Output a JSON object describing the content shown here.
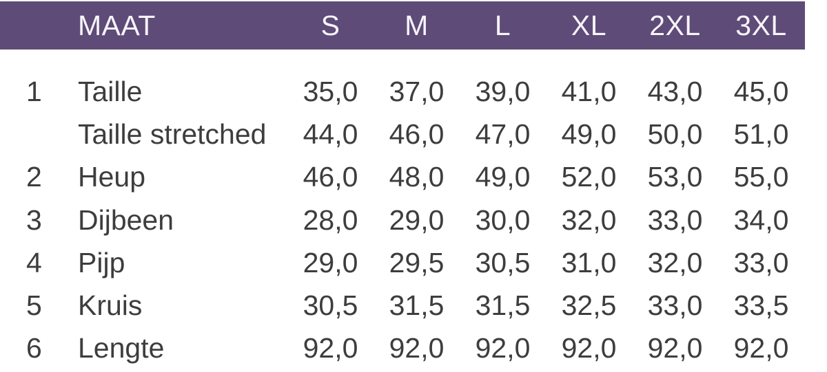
{
  "table": {
    "header": {
      "label": "MAAT",
      "sizes": [
        "S",
        "M",
        "L",
        "XL",
        "2XL",
        "3XL"
      ]
    },
    "rows": [
      {
        "num": "1",
        "label": "Taille",
        "values": [
          "35,0",
          "37,0",
          "39,0",
          "41,0",
          "43,0",
          "45,0"
        ]
      },
      {
        "num": "",
        "label": "Taille stretched",
        "values": [
          "44,0",
          "46,0",
          "47,0",
          "49,0",
          "50,0",
          "51,0"
        ]
      },
      {
        "num": "2",
        "label": "Heup",
        "values": [
          "46,0",
          "48,0",
          "49,0",
          "52,0",
          "53,0",
          "55,0"
        ]
      },
      {
        "num": "3",
        "label": "Dijbeen",
        "values": [
          "28,0",
          "29,0",
          "30,0",
          "32,0",
          "33,0",
          "34,0"
        ]
      },
      {
        "num": "4",
        "label": "Pijp",
        "values": [
          "29,0",
          "29,5",
          "30,5",
          "31,0",
          "32,0",
          "33,0"
        ]
      },
      {
        "num": "5",
        "label": "Kruis",
        "values": [
          "30,5",
          "31,5",
          "31,5",
          "32,5",
          "33,0",
          "33,5"
        ]
      },
      {
        "num": "6",
        "label": "Lengte",
        "values": [
          "92,0",
          "92,0",
          "92,0",
          "92,0",
          "92,0",
          "92,0"
        ]
      }
    ],
    "colors": {
      "header_bg": "#5e4b78",
      "header_text": "#f7f4fa",
      "body_text": "#3d3d3d"
    }
  },
  "chart_data": {
    "type": "table",
    "title": "MAAT",
    "columns": [
      "MAAT",
      "S",
      "M",
      "L",
      "XL",
      "2XL",
      "3XL"
    ],
    "rows": [
      [
        "1 Taille",
        35.0,
        37.0,
        39.0,
        41.0,
        43.0,
        45.0
      ],
      [
        "Taille stretched",
        44.0,
        46.0,
        47.0,
        49.0,
        50.0,
        51.0
      ],
      [
        "2 Heup",
        46.0,
        48.0,
        49.0,
        52.0,
        53.0,
        55.0
      ],
      [
        "3 Dijbeen",
        28.0,
        29.0,
        30.0,
        32.0,
        33.0,
        34.0
      ],
      [
        "4 Pijp",
        29.0,
        29.5,
        30.5,
        31.0,
        32.0,
        33.0
      ],
      [
        "5 Kruis",
        30.5,
        31.5,
        31.5,
        32.5,
        33.0,
        33.5
      ],
      [
        "6 Lengte",
        92.0,
        92.0,
        92.0,
        92.0,
        92.0,
        92.0
      ]
    ],
    "layout_hints": {
      "decimal_separator": ",",
      "header_background": "#5e4b78",
      "grid": "off"
    }
  }
}
